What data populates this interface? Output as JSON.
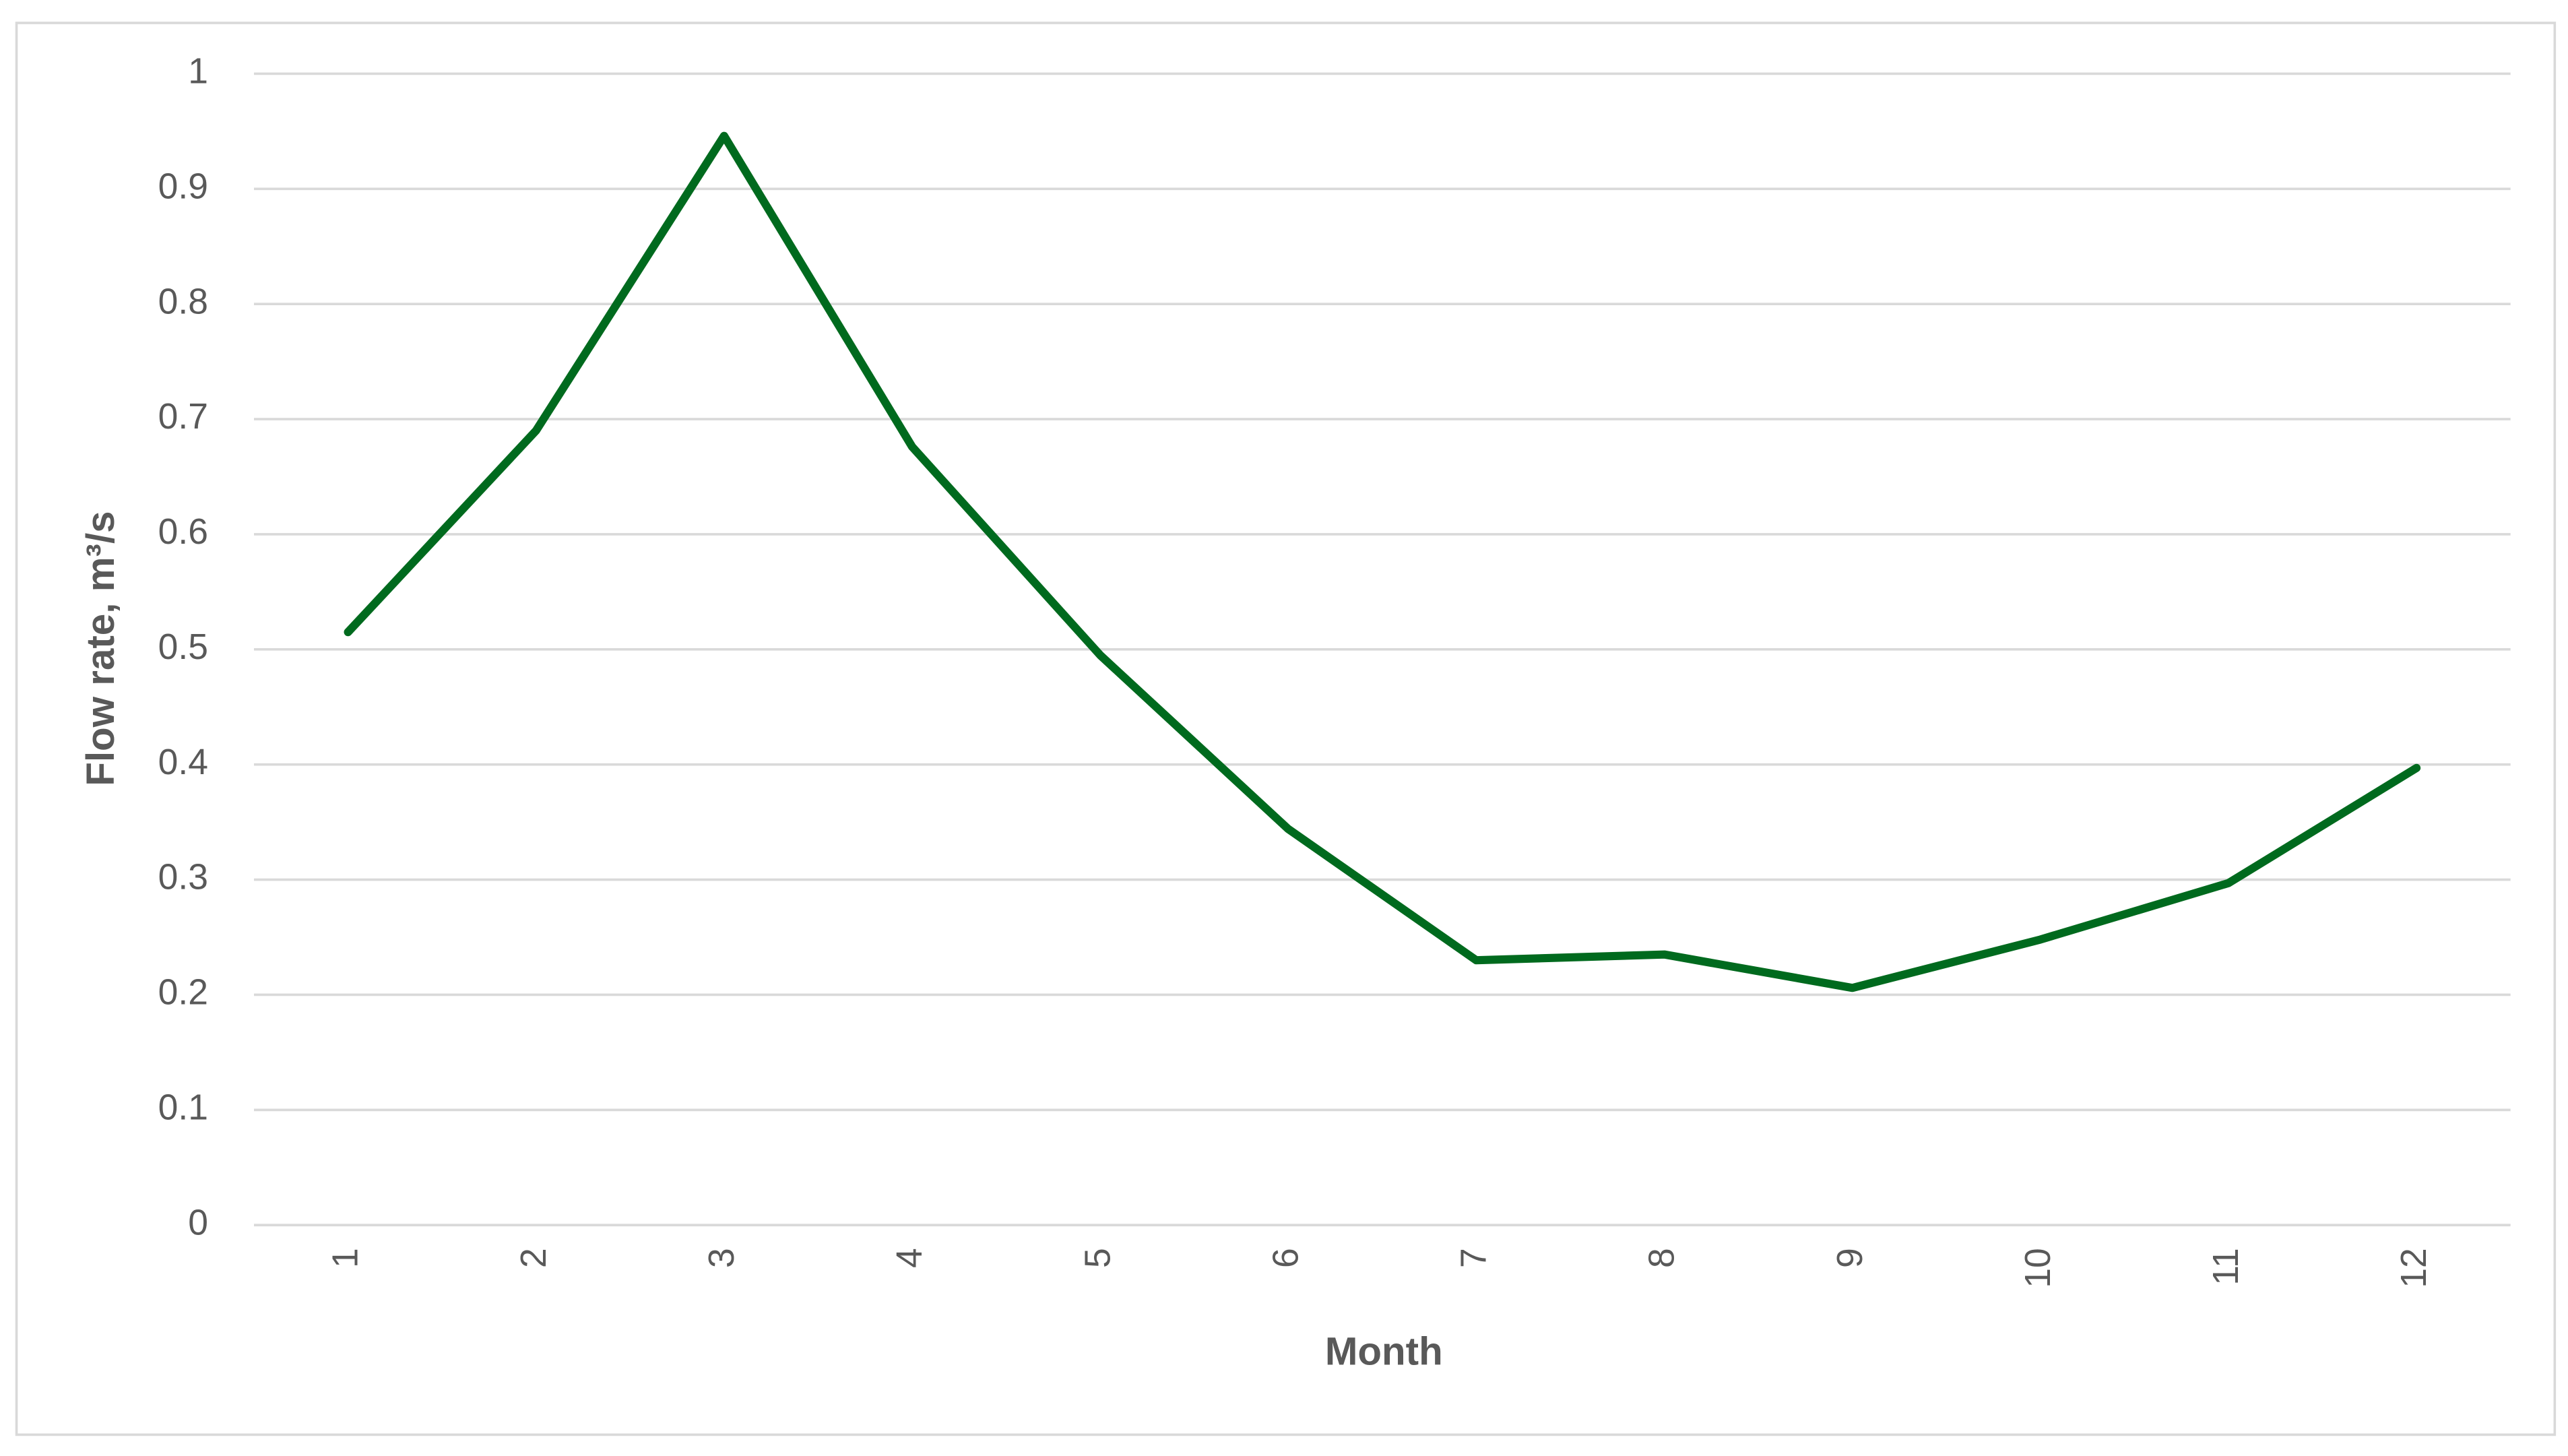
{
  "chart_data": {
    "type": "line",
    "x_label": "Month",
    "y_label": "Flow rate, m³/s",
    "categories": [
      "1",
      "2",
      "3",
      "4",
      "5",
      "6",
      "7",
      "8",
      "9",
      "10",
      "11",
      "12"
    ],
    "values": [
      0.515,
      0.69,
      0.946,
      0.676,
      0.495,
      0.344,
      0.23,
      0.235,
      0.206,
      0.248,
      0.297,
      0.397
    ],
    "color": "#006a1e",
    "ylim": [
      0,
      1
    ],
    "yticks": [
      0,
      0.1,
      0.2,
      0.3,
      0.4,
      0.5,
      0.6,
      0.7,
      0.8,
      0.9,
      1
    ],
    "grid": true
  }
}
